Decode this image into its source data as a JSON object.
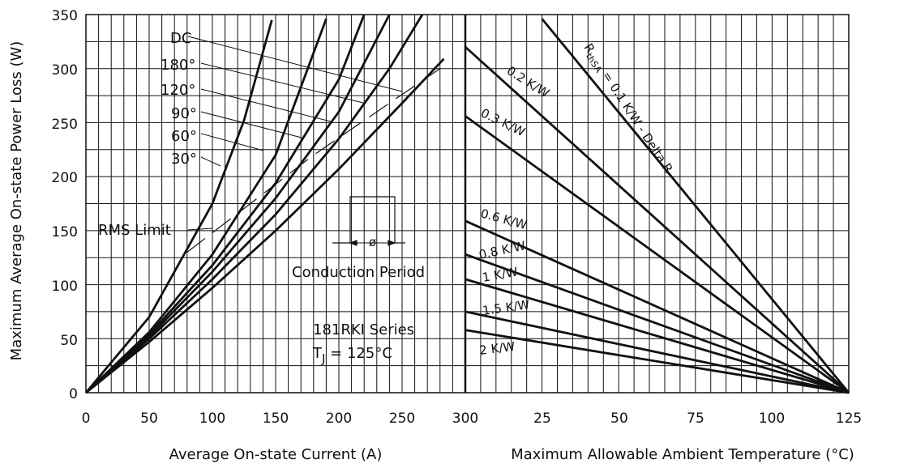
{
  "chart_data": [
    {
      "type": "line",
      "title": "",
      "ylabel": "Maximum Average On-state Power Loss (W)",
      "xlabel": "Average On-state Current (A)",
      "xlim": [
        0,
        300
      ],
      "ylim": [
        0,
        350
      ],
      "xticks": [
        "0",
        "50",
        "100",
        "150",
        "200",
        "250",
        "300"
      ],
      "yticks": [
        "0",
        "50",
        "100",
        "150",
        "200",
        "250",
        "300",
        "350"
      ],
      "grid": true,
      "series": [
        {
          "name": "DC",
          "x": [
            0,
            50,
            100,
            150,
            200,
            250,
            283
          ],
          "y": [
            0,
            47,
            97,
            150,
            207,
            268,
            309
          ]
        },
        {
          "name": "180°",
          "x": [
            0,
            50,
            100,
            150,
            200,
            240,
            266
          ],
          "y": [
            0,
            50,
            105,
            165,
            235,
            300,
            350
          ]
        },
        {
          "name": "120°",
          "x": [
            0,
            50,
            100,
            150,
            200,
            240
          ],
          "y": [
            0,
            52,
            112,
            180,
            260,
            350
          ]
        },
        {
          "name": "90°",
          "x": [
            0,
            50,
            100,
            150,
            200,
            220
          ],
          "y": [
            0,
            54,
            118,
            194,
            290,
            350
          ]
        },
        {
          "name": "60°",
          "x": [
            0,
            50,
            100,
            150,
            190
          ],
          "y": [
            0,
            56,
            128,
            220,
            346
          ]
        },
        {
          "name": "30°",
          "x": [
            0,
            50,
            100,
            125,
            147
          ],
          "y": [
            0,
            70,
            175,
            252,
            345
          ]
        },
        {
          "name": "RMS Limit",
          "x": [
            80,
            130,
            180,
            230,
            280
          ],
          "y": [
            130,
            175,
            220,
            260,
            300
          ],
          "style": "dashed"
        }
      ],
      "annotations": {
        "rms_limit": "RMS Limit",
        "conduction_period": "Conduction Period",
        "series_name": "181RKI Series",
        "tj_prefix": "T",
        "tj_sub": "J",
        "tj_value": " = 125°C",
        "phi": "ø"
      }
    },
    {
      "type": "line",
      "title": "",
      "xlabel": "Maximum Allowable Ambient Temperature (°C)",
      "xlim": [
        0,
        125
      ],
      "ylim": [
        0,
        350
      ],
      "xticks": [
        "25",
        "50",
        "75",
        "100",
        "125"
      ],
      "grid": true,
      "series": [
        {
          "name": "0.1 K/W - Delta R",
          "x": [
            25,
            125
          ],
          "y": [
            346,
            0
          ]
        },
        {
          "name": "0.2 K/W",
          "x": [
            0,
            125
          ],
          "y": [
            320,
            0
          ]
        },
        {
          "name": "0.3 K/W",
          "x": [
            0,
            125
          ],
          "y": [
            256,
            0
          ]
        },
        {
          "name": "0.6 K/W",
          "x": [
            0,
            125
          ],
          "y": [
            159,
            0
          ]
        },
        {
          "name": "0.8 K/W",
          "x": [
            0,
            125
          ],
          "y": [
            128,
            0
          ]
        },
        {
          "name": "1 K/W",
          "x": [
            0,
            125
          ],
          "y": [
            105,
            0
          ]
        },
        {
          "name": "1.5 K/W",
          "x": [
            0,
            125
          ],
          "y": [
            75,
            0
          ]
        },
        {
          "name": "2 K/W",
          "x": [
            0,
            125
          ],
          "y": [
            58,
            0
          ]
        }
      ],
      "annotations": {
        "r_symbol": "R",
        "r_sub": "thSA",
        "r_value": " = 0.1 K/W - Delta R"
      }
    }
  ]
}
